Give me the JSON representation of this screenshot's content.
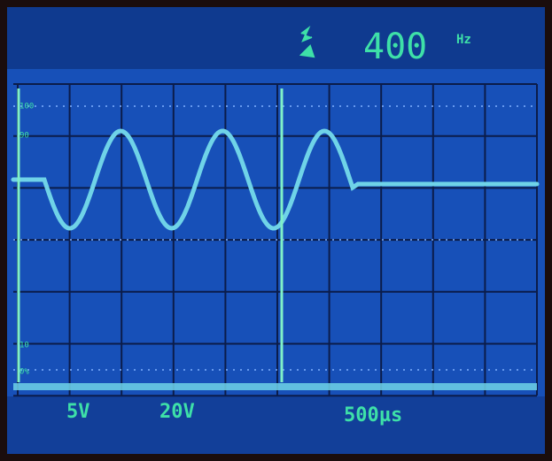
{
  "readout": {
    "value": "400",
    "unit": "Hz"
  },
  "graticule_labels": [
    "100",
    "90",
    "10",
    "0%"
  ],
  "settings": [
    "5V",
    "20V",
    "500µs"
  ]
}
